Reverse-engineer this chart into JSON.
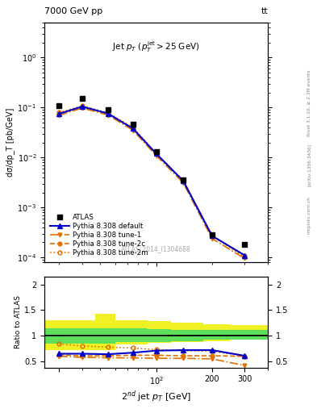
{
  "title_left": "7000 GeV pp",
  "title_right": "tt",
  "annotation": "Jet $p_T$ ($p_T^{\\rm jet}>25$ GeV)",
  "atlas_label": "ATLAS_2014_I1304688",
  "rivet_label": "Rivet 3.1.10, ≥ 2.3M events",
  "arxiv_label": "[arXiv:1306.3436]",
  "mcplots_label": "mcplots.cern.ch",
  "ylabel_main": "dσ/dp_T [pb/GeV]",
  "ylabel_ratio": "Ratio to ATLAS",
  "xlabel": "2$^{nd}$ jet $p_T$ [GeV]",
  "x_data": [
    30,
    40,
    55,
    75,
    100,
    140,
    200,
    300
  ],
  "atlas_y": [
    0.11,
    0.155,
    0.09,
    0.046,
    0.013,
    0.0036,
    0.00028,
    0.000185
  ],
  "pythia_default_y": [
    0.075,
    0.105,
    0.076,
    0.038,
    0.012,
    0.0034,
    0.00027,
    0.00011
  ],
  "pythia_tune1_y": [
    0.07,
    0.098,
    0.071,
    0.035,
    0.011,
    0.0031,
    0.00024,
    9.5e-05
  ],
  "pythia_tune2c_y": [
    0.076,
    0.102,
    0.076,
    0.038,
    0.012,
    0.0034,
    0.00027,
    0.00011
  ],
  "pythia_tune2m_y": [
    0.08,
    0.108,
    0.079,
    0.04,
    0.012,
    0.0035,
    0.00028,
    0.0001
  ],
  "ratio_default": [
    0.65,
    0.65,
    0.64,
    0.67,
    0.71,
    0.72,
    0.72,
    0.61
  ],
  "ratio_tune1": [
    0.6,
    0.58,
    0.57,
    0.57,
    0.56,
    0.56,
    0.55,
    0.42
  ],
  "ratio_tune2c": [
    0.63,
    0.61,
    0.61,
    0.62,
    0.62,
    0.61,
    0.61,
    0.6
  ],
  "ratio_tune2m": [
    0.84,
    0.8,
    0.78,
    0.76,
    0.73,
    0.71,
    0.7,
    0.6
  ],
  "band_x_edges": [
    25,
    47,
    60,
    90,
    120,
    180,
    250,
    400
  ],
  "band_green_lo": [
    0.85,
    0.85,
    0.87,
    0.88,
    0.9,
    0.92,
    0.93,
    0.93
  ],
  "band_green_hi": [
    1.15,
    1.15,
    1.14,
    1.13,
    1.12,
    1.12,
    1.12,
    1.12
  ],
  "band_yellow_lo": [
    0.72,
    0.72,
    0.83,
    0.86,
    0.88,
    0.9,
    0.92,
    0.92
  ],
  "band_yellow_hi": [
    1.3,
    1.42,
    1.3,
    1.28,
    1.25,
    1.22,
    1.2,
    1.2
  ],
  "color_blue": "#0000cc",
  "color_orange_solid": "#e07000",
  "color_orange_open": "#e07000",
  "color_green_band": "#44dd66",
  "color_yellow_band": "#eeee00",
  "xlim": [
    25,
    400
  ],
  "ylim_main": [
    8e-05,
    5.0
  ],
  "ylim_ratio": [
    0.38,
    2.15
  ]
}
